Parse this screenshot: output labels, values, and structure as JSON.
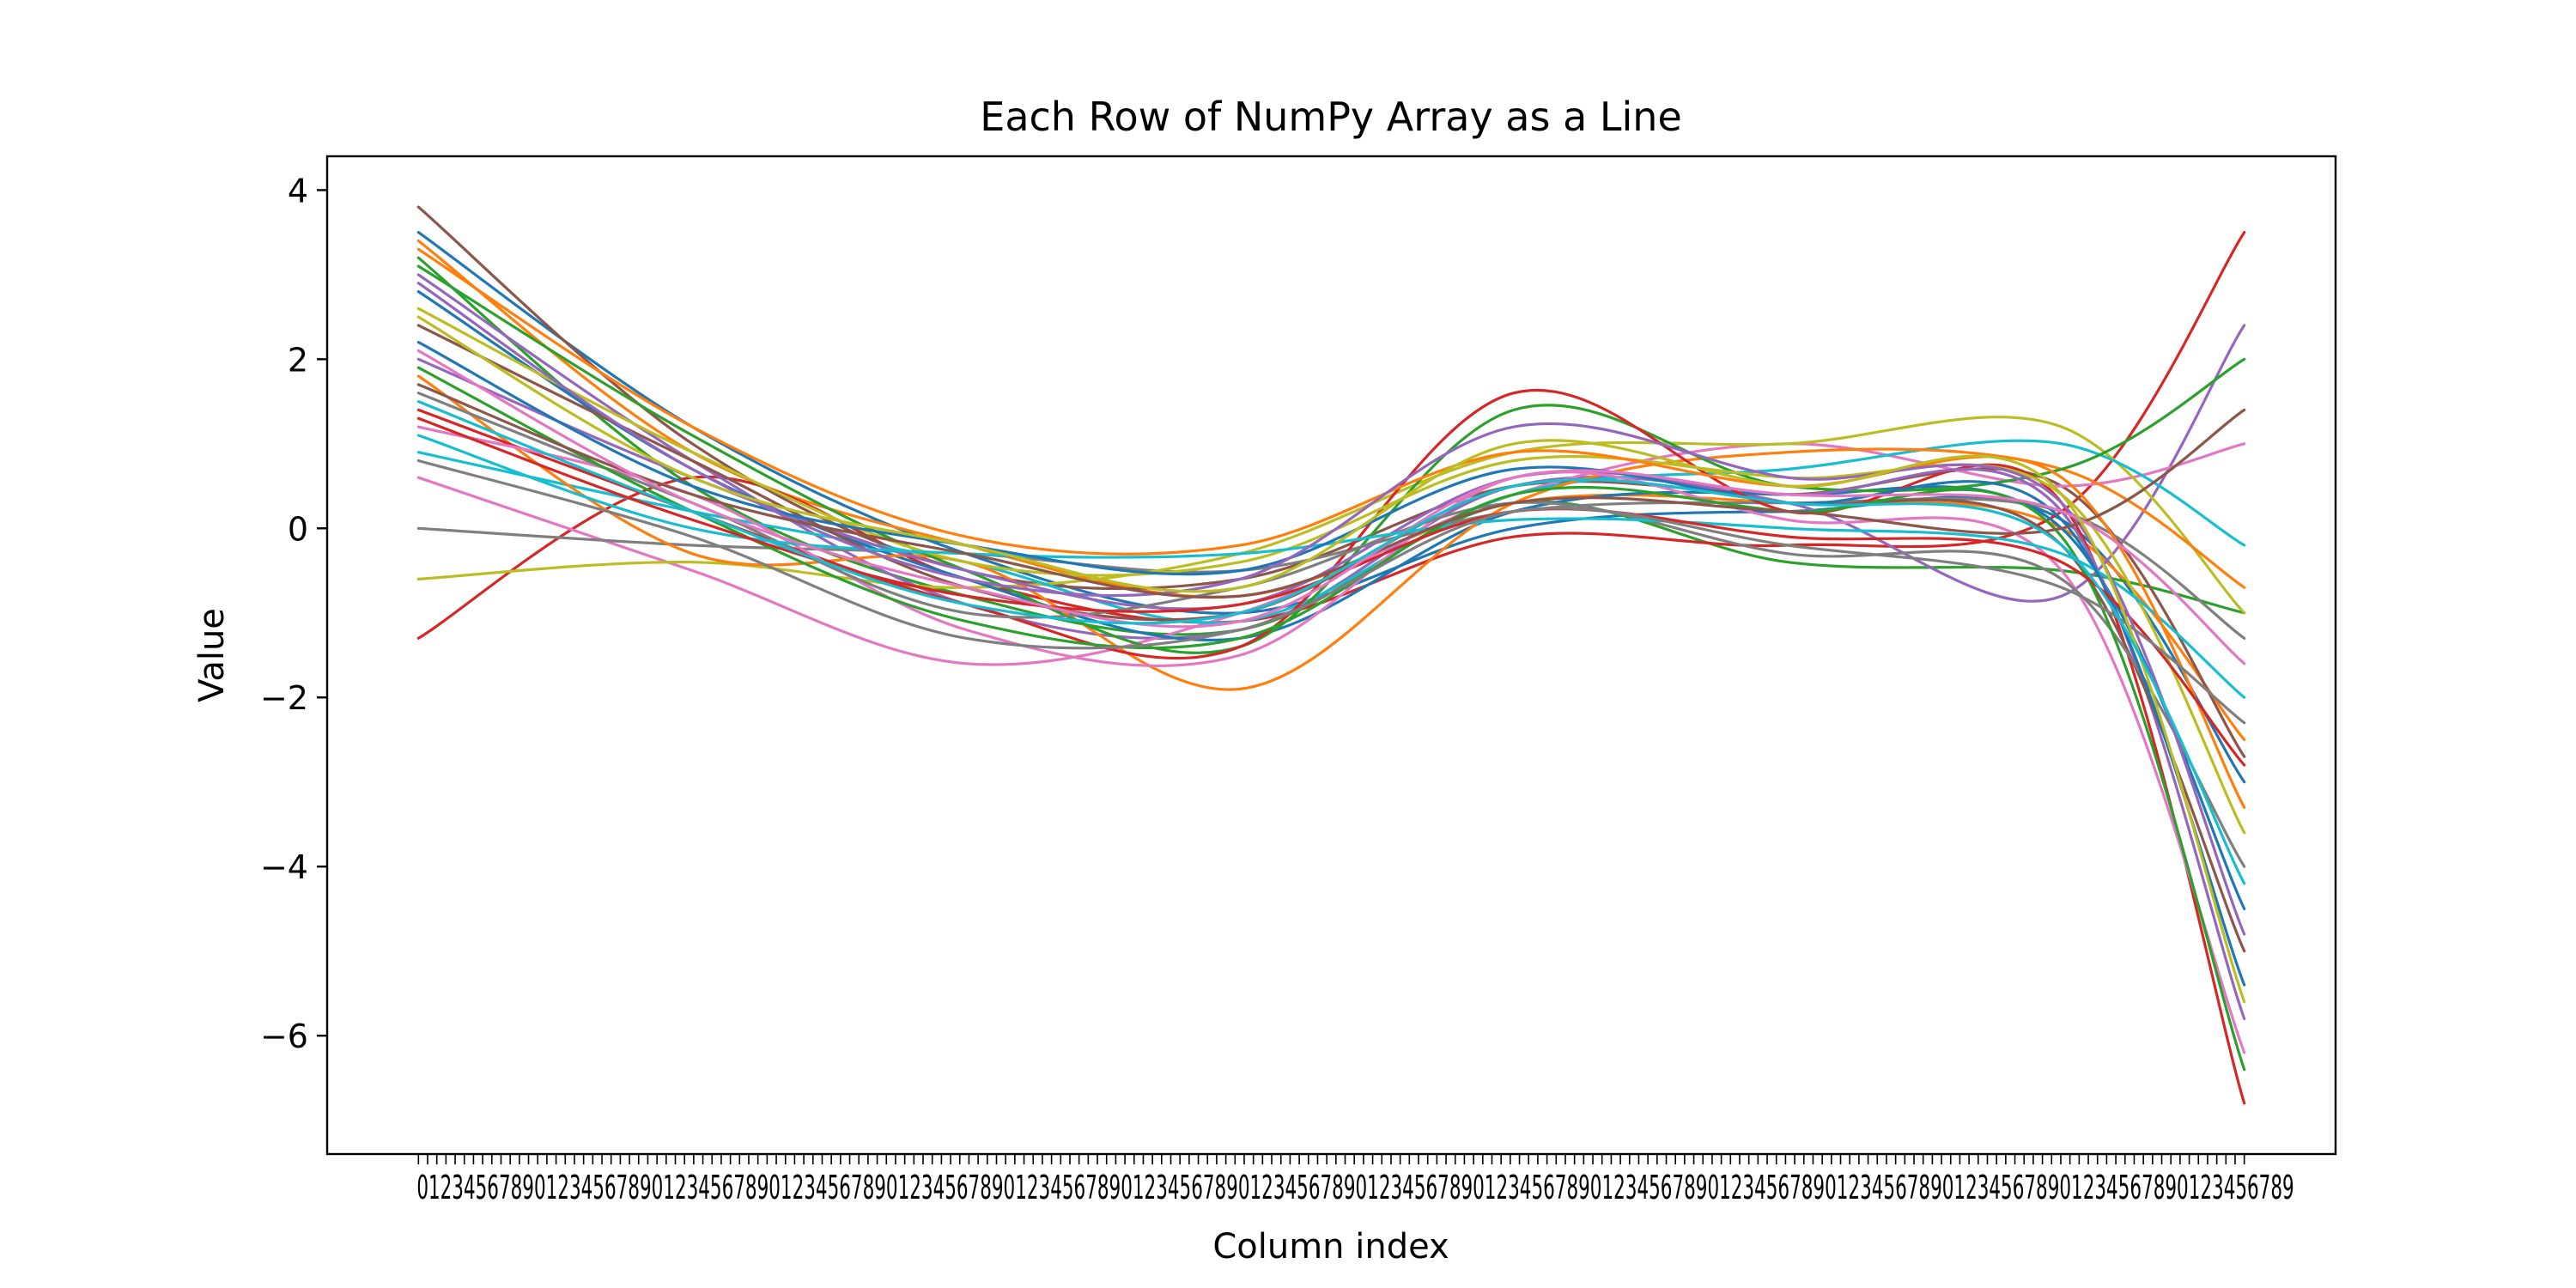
{
  "chart_data": {
    "type": "line",
    "title": "Each Row of NumPy Array as a Line",
    "xlabel": "Column index",
    "ylabel": "Value",
    "ylim": [
      -7.4,
      4.4
    ],
    "xlim": [
      -0.5,
      10.5
    ],
    "yticks": [
      -6,
      -4,
      -2,
      0,
      2,
      4
    ],
    "ytick_labels": [
      "−6",
      "−4",
      "−2",
      "0",
      "2",
      "4"
    ],
    "x_note": "many overlapping x tick labels render as an illegible smear",
    "grid": false,
    "legend": "none",
    "line_width": 3.2,
    "x_anchor": [
      0,
      1.5,
      3,
      4.5,
      6,
      7.5,
      9,
      10
    ],
    "palette": [
      "#1f77b4",
      "#ff7f0e",
      "#2ca02c",
      "#d62728",
      "#9467bd",
      "#8c564b",
      "#e377c2",
      "#7f7f7f",
      "#bcbd22",
      "#17becf"
    ],
    "series_profiles": [
      {
        "values": [
          3.5,
          1.2,
          -0.3,
          -1.0,
          0.0,
          0.2,
          0.1,
          -3.0
        ]
      },
      {
        "values": [
          3.4,
          0.9,
          -0.2,
          -0.8,
          0.3,
          0.3,
          0.0,
          -2.5
        ]
      },
      {
        "values": [
          3.2,
          0.5,
          -0.8,
          -1.2,
          0.3,
          -0.4,
          -0.5,
          -1.0
        ]
      },
      {
        "values": [
          -1.3,
          0.6,
          -0.6,
          -1.1,
          -0.1,
          -0.2,
          0.2,
          3.5
        ]
      },
      {
        "values": [
          3.0,
          0.8,
          -0.9,
          -1.2,
          0.5,
          0.3,
          -0.8,
          2.4
        ]
      },
      {
        "values": [
          3.8,
          1.0,
          -0.5,
          -0.6,
          0.5,
          0.4,
          0.5,
          -2.7
        ]
      },
      {
        "values": [
          0.6,
          -0.5,
          -1.6,
          -1.0,
          0.4,
          1.0,
          0.5,
          1.0
        ]
      },
      {
        "values": [
          0.0,
          -0.2,
          -0.3,
          -0.5,
          0.2,
          0.3,
          0.2,
          -1.3
        ]
      },
      {
        "values": [
          -0.6,
          -0.4,
          -0.7,
          -0.3,
          0.9,
          1.0,
          1.2,
          -1.0
        ]
      },
      {
        "values": [
          0.9,
          0.2,
          -0.4,
          -1.1,
          0.4,
          0.7,
          1.0,
          -0.2
        ]
      },
      {
        "values": [
          2.8,
          0.7,
          -0.6,
          -1.3,
          0.2,
          0.4,
          0.0,
          -4.5
        ]
      },
      {
        "values": [
          1.8,
          -0.3,
          -0.4,
          -1.9,
          0.3,
          0.9,
          0.7,
          -0.7
        ]
      },
      {
        "values": [
          3.1,
          1.1,
          -0.5,
          -1.4,
          1.4,
          0.5,
          0.7,
          2.0
        ]
      },
      {
        "values": [
          1.4,
          0.2,
          -0.9,
          -1.4,
          1.6,
          0.2,
          0.3,
          -6.8
        ]
      },
      {
        "values": [
          2.0,
          0.6,
          -0.5,
          -0.9,
          0.6,
          0.4,
          0.2,
          -5.8
        ]
      },
      {
        "values": [
          2.4,
          0.8,
          -0.7,
          -1.0,
          0.5,
          0.3,
          -0.2,
          -5.0
        ]
      },
      {
        "values": [
          1.2,
          0.4,
          -1.2,
          -1.5,
          0.6,
          0.1,
          -0.5,
          -6.2
        ]
      },
      {
        "values": [
          1.6,
          0.3,
          -1.0,
          -0.7,
          0.3,
          -0.3,
          -0.6,
          -4.0
        ]
      },
      {
        "values": [
          2.6,
          0.9,
          -0.4,
          -0.4,
          0.8,
          0.6,
          0.4,
          -3.6
        ]
      },
      {
        "values": [
          1.1,
          0.0,
          -0.3,
          -0.3,
          0.1,
          0.0,
          -0.3,
          -2.0
        ]
      },
      {
        "values": [
          2.2,
          0.5,
          -0.2,
          -0.5,
          0.7,
          0.3,
          0.1,
          -5.4
        ]
      },
      {
        "values": [
          3.3,
          1.2,
          -0.1,
          -0.2,
          0.9,
          0.5,
          0.6,
          -3.3
        ]
      },
      {
        "values": [
          1.9,
          0.2,
          -1.1,
          -1.3,
          0.4,
          0.2,
          -0.1,
          -6.4
        ]
      },
      {
        "values": [
          1.3,
          0.1,
          -0.8,
          -0.9,
          0.2,
          -0.1,
          -0.4,
          -2.8
        ]
      },
      {
        "values": [
          2.9,
          0.7,
          -0.6,
          -0.6,
          1.2,
          0.6,
          0.3,
          -4.8
        ]
      },
      {
        "values": [
          1.7,
          0.4,
          -0.3,
          -0.8,
          0.3,
          0.2,
          0.0,
          1.4
        ]
      },
      {
        "values": [
          2.1,
          0.3,
          -0.7,
          -1.1,
          0.6,
          0.4,
          0.2,
          -1.6
        ]
      },
      {
        "values": [
          0.8,
          -0.1,
          -1.3,
          -1.2,
          0.2,
          -0.2,
          -0.7,
          -2.3
        ]
      },
      {
        "values": [
          2.5,
          0.6,
          -0.2,
          -0.7,
          1.0,
          0.5,
          0.4,
          -5.6
        ]
      },
      {
        "values": [
          1.5,
          0.2,
          -0.9,
          -1.0,
          0.5,
          0.3,
          -0.2,
          -4.2
        ]
      }
    ]
  }
}
